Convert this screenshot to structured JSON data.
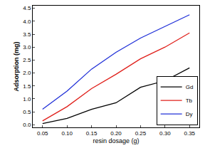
{
  "chart_data": {
    "type": "line",
    "x_label": "resin dosage (g)",
    "y_label": "Adsorption (mg)",
    "x": [
      0.05,
      0.1,
      0.15,
      0.2,
      0.25,
      0.3,
      0.35
    ],
    "series": [
      {
        "name": "Gd",
        "color": "#000000",
        "values": [
          0.05,
          0.25,
          0.6,
          0.85,
          1.45,
          1.7,
          2.2
        ]
      },
      {
        "name": "Tb",
        "color": "#e0201b",
        "values": [
          0.15,
          0.7,
          1.4,
          1.95,
          2.55,
          3.0,
          3.55
        ]
      },
      {
        "name": "Dy",
        "color": "#2030d8",
        "values": [
          0.6,
          1.3,
          2.15,
          2.8,
          3.35,
          3.8,
          4.25
        ]
      }
    ],
    "xlim": [
      0.03,
      0.37
    ],
    "xticks": [
      0.05,
      {
        "value": 0.1,
        "label": "0.10"
      },
      0.15,
      {
        "value": 0.2,
        "label": "0.20"
      },
      0.25,
      {
        "value": 0.3,
        "label": "0.30"
      },
      0.35
    ],
    "ylim": [
      -0.1,
      4.6
    ],
    "yticks": [
      {
        "value": 0,
        "label": "0.0"
      },
      0.5,
      {
        "value": 1,
        "label": "1.0"
      },
      1.5,
      {
        "value": 2,
        "label": "2.0"
      },
      2.5,
      {
        "value": 3,
        "label": "3.0"
      },
      3.5,
      {
        "value": 4,
        "label": "4.0"
      },
      4.5
    ],
    "grid": false,
    "legend": "lower right"
  }
}
